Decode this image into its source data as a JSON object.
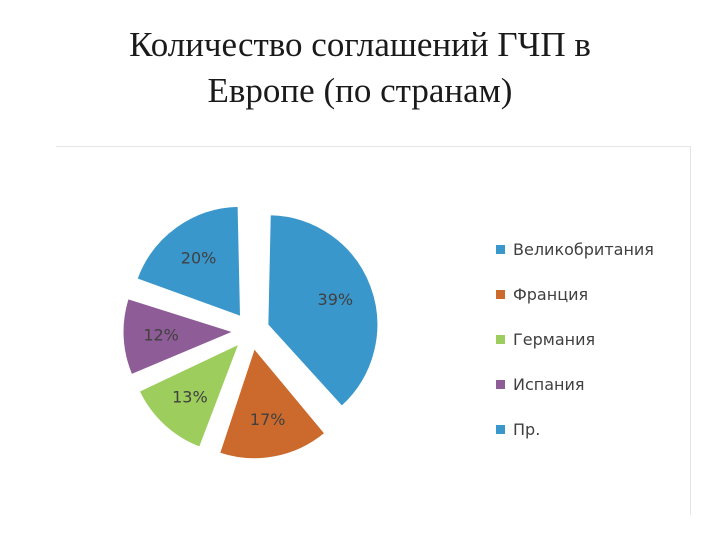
{
  "title_line1": "Количество соглашений ГЧП в",
  "title_line2": "Европе (по странам)",
  "chart_data": {
    "type": "pie",
    "title": "Количество соглашений ГЧП в Европе (по странам)",
    "exploded": true,
    "legend_position": "right",
    "slices": [
      {
        "label": "Великобритания",
        "value": 39,
        "display": "39%",
        "color": "#3a97cb"
      },
      {
        "label": "Франция",
        "value": 17,
        "display": "17%",
        "color": "#cc6a2d"
      },
      {
        "label": "Германия",
        "value": 13,
        "display": "13%",
        "color": "#9dcd5c"
      },
      {
        "label": "Испания",
        "value": 12,
        "display": "12%",
        "color": "#8e5c97"
      },
      {
        "label": "Пр.",
        "value": 20,
        "display": "20%",
        "color": "#3a97cb"
      }
    ]
  }
}
